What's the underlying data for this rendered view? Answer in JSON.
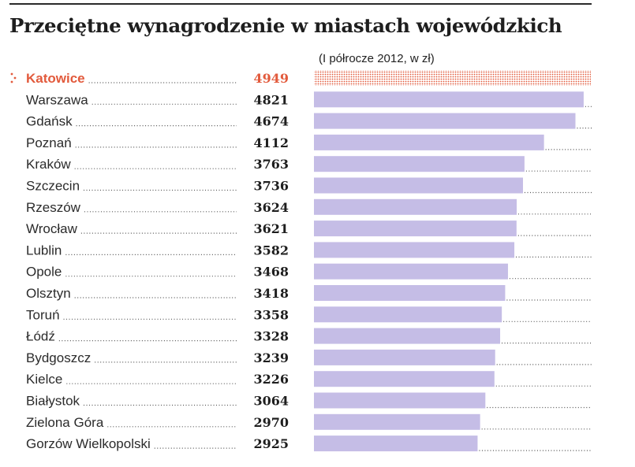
{
  "chart_data": {
    "type": "bar",
    "orientation": "horizontal",
    "title": "Przeciętne wynagrodzenie w miastach wojewódzkich",
    "subtitle": "(I półrocze 2012, w zł)",
    "categories": [
      "Katowice",
      "Warszawa",
      "Gdańsk",
      "Poznań",
      "Kraków",
      "Szczecin",
      "Rzeszów",
      "Wrocław",
      "Lublin",
      "Opole",
      "Olsztyn",
      "Toruń",
      "Łódź",
      "Bydgoszcz",
      "Kielce",
      "Białystok",
      "Zielona Góra",
      "Gorzów Wielkopolski"
    ],
    "values": [
      4949,
      4821,
      4674,
      4112,
      3763,
      3736,
      3624,
      3621,
      3582,
      3468,
      3418,
      3358,
      3328,
      3239,
      3226,
      3064,
      2970,
      2925
    ],
    "value_labels": [
      "4949",
      "4821",
      "4674",
      "4112",
      "3763",
      "3736",
      "3624",
      "3621",
      "3582",
      "3468",
      "3418",
      "3358",
      "3328",
      "3239",
      "3226",
      "3064",
      "2970",
      "2925"
    ],
    "highlight_index": 0,
    "xlim": [
      0,
      4949
    ],
    "xlabel": "",
    "ylabel": "",
    "grid": false,
    "legend": "none",
    "colors": {
      "bar": "#c5bde6",
      "highlight": "#e25a3c",
      "text": "#2b2b2b"
    }
  }
}
